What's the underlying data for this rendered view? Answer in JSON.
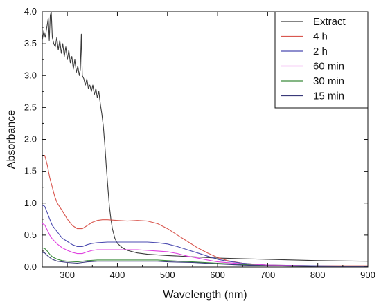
{
  "chart_data": {
    "type": "line",
    "title": "",
    "xlabel": "Wavelength (nm)",
    "ylabel": "Absorbance",
    "xlim": [
      250,
      900
    ],
    "ylim": [
      0,
      4.0
    ],
    "x_ticks": [
      300,
      400,
      500,
      600,
      700,
      800,
      900
    ],
    "y_ticks": [
      0.0,
      0.5,
      1.0,
      1.5,
      2.0,
      2.5,
      3.0,
      3.5,
      4.0
    ],
    "grid": false,
    "legend_position": "top-right",
    "series": [
      {
        "name": "Extract",
        "color": "#3a3a3a",
        "points": [
          [
            250,
            3.55
          ],
          [
            253,
            3.7
          ],
          [
            256,
            3.6
          ],
          [
            259,
            3.75
          ],
          [
            262,
            3.9
          ],
          [
            264,
            3.55
          ],
          [
            266,
            3.95
          ],
          [
            268,
            4.0
          ],
          [
            270,
            3.6
          ],
          [
            273,
            3.5
          ],
          [
            276,
            3.45
          ],
          [
            279,
            3.6
          ],
          [
            282,
            3.4
          ],
          [
            285,
            3.55
          ],
          [
            288,
            3.35
          ],
          [
            291,
            3.5
          ],
          [
            294,
            3.3
          ],
          [
            297,
            3.45
          ],
          [
            300,
            3.25
          ],
          [
            303,
            3.4
          ],
          [
            306,
            3.2
          ],
          [
            309,
            3.3
          ],
          [
            312,
            3.1
          ],
          [
            315,
            3.25
          ],
          [
            318,
            3.05
          ],
          [
            321,
            3.15
          ],
          [
            324,
            3.0
          ],
          [
            326,
            3.1
          ],
          [
            328,
            3.65
          ],
          [
            330,
            3.0
          ],
          [
            333,
            2.95
          ],
          [
            336,
            2.85
          ],
          [
            339,
            2.95
          ],
          [
            342,
            2.8
          ],
          [
            345,
            2.85
          ],
          [
            348,
            2.75
          ],
          [
            351,
            2.85
          ],
          [
            354,
            2.7
          ],
          [
            357,
            2.8
          ],
          [
            360,
            2.65
          ],
          [
            363,
            2.75
          ],
          [
            366,
            2.55
          ],
          [
            369,
            2.4
          ],
          [
            372,
            2.2
          ],
          [
            375,
            1.9
          ],
          [
            378,
            1.55
          ],
          [
            381,
            1.25
          ],
          [
            384,
            0.95
          ],
          [
            387,
            0.75
          ],
          [
            390,
            0.6
          ],
          [
            395,
            0.45
          ],
          [
            400,
            0.37
          ],
          [
            410,
            0.3
          ],
          [
            420,
            0.26
          ],
          [
            440,
            0.22
          ],
          [
            460,
            0.2
          ],
          [
            500,
            0.18
          ],
          [
            550,
            0.16
          ],
          [
            600,
            0.14
          ],
          [
            650,
            0.13
          ],
          [
            700,
            0.12
          ],
          [
            800,
            0.1
          ],
          [
            900,
            0.09
          ]
        ]
      },
      {
        "name": "4 h",
        "color": "#d9574f",
        "points": [
          [
            250,
            1.75
          ],
          [
            255,
            1.75
          ],
          [
            260,
            1.6
          ],
          [
            265,
            1.4
          ],
          [
            270,
            1.25
          ],
          [
            275,
            1.1
          ],
          [
            280,
            1.0
          ],
          [
            290,
            0.88
          ],
          [
            300,
            0.75
          ],
          [
            310,
            0.65
          ],
          [
            320,
            0.6
          ],
          [
            330,
            0.6
          ],
          [
            340,
            0.65
          ],
          [
            350,
            0.7
          ],
          [
            360,
            0.73
          ],
          [
            370,
            0.74
          ],
          [
            380,
            0.74
          ],
          [
            400,
            0.73
          ],
          [
            420,
            0.72
          ],
          [
            440,
            0.73
          ],
          [
            460,
            0.72
          ],
          [
            480,
            0.68
          ],
          [
            500,
            0.6
          ],
          [
            520,
            0.5
          ],
          [
            540,
            0.4
          ],
          [
            560,
            0.3
          ],
          [
            580,
            0.22
          ],
          [
            600,
            0.15
          ],
          [
            620,
            0.1
          ],
          [
            650,
            0.06
          ],
          [
            700,
            0.03
          ],
          [
            800,
            0.02
          ],
          [
            900,
            0.02
          ]
        ]
      },
      {
        "name": "2 h",
        "color": "#4b4bb0",
        "points": [
          [
            250,
            0.97
          ],
          [
            255,
            0.95
          ],
          [
            260,
            0.85
          ],
          [
            265,
            0.75
          ],
          [
            270,
            0.65
          ],
          [
            280,
            0.55
          ],
          [
            290,
            0.45
          ],
          [
            300,
            0.4
          ],
          [
            310,
            0.35
          ],
          [
            320,
            0.32
          ],
          [
            330,
            0.32
          ],
          [
            340,
            0.35
          ],
          [
            350,
            0.37
          ],
          [
            360,
            0.38
          ],
          [
            380,
            0.39
          ],
          [
            400,
            0.39
          ],
          [
            420,
            0.39
          ],
          [
            440,
            0.39
          ],
          [
            460,
            0.39
          ],
          [
            480,
            0.38
          ],
          [
            500,
            0.36
          ],
          [
            520,
            0.32
          ],
          [
            540,
            0.27
          ],
          [
            560,
            0.22
          ],
          [
            580,
            0.17
          ],
          [
            600,
            0.12
          ],
          [
            620,
            0.09
          ],
          [
            650,
            0.06
          ],
          [
            700,
            0.03
          ],
          [
            800,
            0.02
          ],
          [
            900,
            0.01
          ]
        ]
      },
      {
        "name": "60 min",
        "color": "#e040e0",
        "points": [
          [
            250,
            0.68
          ],
          [
            255,
            0.66
          ],
          [
            260,
            0.58
          ],
          [
            265,
            0.5
          ],
          [
            270,
            0.44
          ],
          [
            280,
            0.36
          ],
          [
            290,
            0.3
          ],
          [
            300,
            0.26
          ],
          [
            310,
            0.23
          ],
          [
            320,
            0.21
          ],
          [
            330,
            0.21
          ],
          [
            340,
            0.24
          ],
          [
            350,
            0.26
          ],
          [
            360,
            0.27
          ],
          [
            380,
            0.27
          ],
          [
            400,
            0.27
          ],
          [
            420,
            0.27
          ],
          [
            440,
            0.27
          ],
          [
            460,
            0.26
          ],
          [
            480,
            0.25
          ],
          [
            500,
            0.24
          ],
          [
            520,
            0.21
          ],
          [
            540,
            0.17
          ],
          [
            560,
            0.14
          ],
          [
            580,
            0.11
          ],
          [
            600,
            0.08
          ],
          [
            650,
            0.05
          ],
          [
            700,
            0.03
          ],
          [
            800,
            0.01
          ],
          [
            900,
            0.01
          ]
        ]
      },
      {
        "name": "30 min",
        "color": "#3a8a3a",
        "points": [
          [
            250,
            0.3
          ],
          [
            255,
            0.29
          ],
          [
            260,
            0.25
          ],
          [
            265,
            0.2
          ],
          [
            270,
            0.16
          ],
          [
            280,
            0.12
          ],
          [
            290,
            0.1
          ],
          [
            300,
            0.09
          ],
          [
            320,
            0.08
          ],
          [
            340,
            0.1
          ],
          [
            360,
            0.11
          ],
          [
            400,
            0.11
          ],
          [
            440,
            0.11
          ],
          [
            480,
            0.11
          ],
          [
            500,
            0.1
          ],
          [
            550,
            0.08
          ],
          [
            600,
            0.06
          ],
          [
            650,
            0.04
          ],
          [
            700,
            0.02
          ],
          [
            800,
            0.01
          ],
          [
            900,
            0.01
          ]
        ]
      },
      {
        "name": "15 min",
        "color": "#3a3a7a",
        "points": [
          [
            250,
            0.23
          ],
          [
            255,
            0.22
          ],
          [
            260,
            0.18
          ],
          [
            265,
            0.15
          ],
          [
            270,
            0.12
          ],
          [
            280,
            0.09
          ],
          [
            290,
            0.08
          ],
          [
            300,
            0.07
          ],
          [
            320,
            0.06
          ],
          [
            340,
            0.08
          ],
          [
            360,
            0.09
          ],
          [
            400,
            0.09
          ],
          [
            440,
            0.09
          ],
          [
            480,
            0.09
          ],
          [
            500,
            0.08
          ],
          [
            550,
            0.07
          ],
          [
            600,
            0.05
          ],
          [
            650,
            0.03
          ],
          [
            700,
            0.02
          ],
          [
            800,
            0.01
          ],
          [
            900,
            0.01
          ]
        ]
      }
    ]
  }
}
